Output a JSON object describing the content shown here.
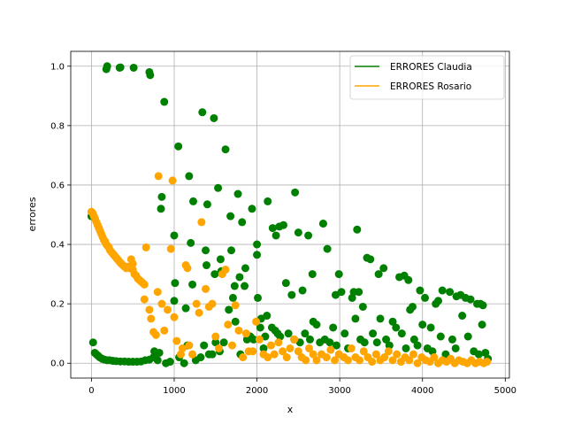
{
  "chart_data": {
    "type": "scatter",
    "title": "",
    "xlabel": "x",
    "ylabel": "errores",
    "xlim": [
      -250,
      5050
    ],
    "ylim": [
      -0.05,
      1.05
    ],
    "xticks": [
      0,
      1000,
      2000,
      3000,
      4000,
      5000
    ],
    "yticks": [
      0.0,
      0.2,
      0.4,
      0.6,
      0.8,
      1.0
    ],
    "xtick_labels": [
      "0",
      "1000",
      "2000",
      "3000",
      "4000",
      "5000"
    ],
    "ytick_labels": [
      "0.0",
      "0.2",
      "0.4",
      "0.6",
      "0.8",
      "1.0"
    ],
    "grid": true,
    "legend_position": "top-right",
    "series": [
      {
        "name": "ERRORES Claudia",
        "color": "#008000",
        "points": [
          [
            0,
            0.495
          ],
          [
            20,
            0.07
          ],
          [
            40,
            0.035
          ],
          [
            60,
            0.03
          ],
          [
            80,
            0.025
          ],
          [
            100,
            0.02
          ],
          [
            130,
            0.015
          ],
          [
            160,
            0.012
          ],
          [
            190,
            0.01
          ],
          [
            220,
            0.01
          ],
          [
            260,
            0.008
          ],
          [
            300,
            0.007
          ],
          [
            350,
            0.006
          ],
          [
            400,
            0.006
          ],
          [
            450,
            0.005
          ],
          [
            500,
            0.005
          ],
          [
            550,
            0.005
          ],
          [
            600,
            0.006
          ],
          [
            650,
            0.01
          ],
          [
            700,
            0.012
          ],
          [
            750,
            0.02
          ],
          [
            180,
            0.99
          ],
          [
            190,
            1.0
          ],
          [
            340,
            0.995
          ],
          [
            350,
            0.996
          ],
          [
            510,
            0.995
          ],
          [
            700,
            0.98
          ],
          [
            710,
            0.97
          ],
          [
            880,
            0.88
          ],
          [
            1050,
            0.73
          ],
          [
            1180,
            0.63
          ],
          [
            1340,
            0.845
          ],
          [
            1480,
            0.825
          ],
          [
            1620,
            0.72
          ],
          [
            1530,
            0.59
          ],
          [
            1770,
            0.57
          ],
          [
            1940,
            0.52
          ],
          [
            2130,
            0.545
          ],
          [
            2460,
            0.575
          ],
          [
            840,
            0.52
          ],
          [
            850,
            0.56
          ],
          [
            1000,
            0.43
          ],
          [
            1200,
            0.405
          ],
          [
            1230,
            0.545
          ],
          [
            1400,
            0.535
          ],
          [
            1680,
            0.495
          ],
          [
            1820,
            0.475
          ],
          [
            2000,
            0.4
          ],
          [
            2000,
            0.365
          ],
          [
            2190,
            0.455
          ],
          [
            2230,
            0.43
          ],
          [
            2270,
            0.46
          ],
          [
            2320,
            0.465
          ],
          [
            2500,
            0.44
          ],
          [
            2620,
            0.43
          ],
          [
            2800,
            0.47
          ],
          [
            3210,
            0.45
          ],
          [
            1010,
            0.27
          ],
          [
            1140,
            0.185
          ],
          [
            1220,
            0.265
          ],
          [
            1380,
            0.38
          ],
          [
            1390,
            0.33
          ],
          [
            1490,
            0.3
          ],
          [
            1560,
            0.35
          ],
          [
            1570,
            0.31
          ],
          [
            1690,
            0.38
          ],
          [
            1710,
            0.22
          ],
          [
            1730,
            0.26
          ],
          [
            1790,
            0.29
          ],
          [
            1850,
            0.26
          ],
          [
            1860,
            0.32
          ],
          [
            2010,
            0.22
          ],
          [
            2050,
            0.15
          ],
          [
            2120,
            0.16
          ],
          [
            2350,
            0.27
          ],
          [
            2420,
            0.23
          ],
          [
            2550,
            0.245
          ],
          [
            2670,
            0.3
          ],
          [
            2850,
            0.385
          ],
          [
            2950,
            0.23
          ],
          [
            2990,
            0.3
          ],
          [
            3020,
            0.24
          ],
          [
            3150,
            0.22
          ],
          [
            3170,
            0.24
          ],
          [
            3230,
            0.24
          ],
          [
            3280,
            0.19
          ],
          [
            3330,
            0.355
          ],
          [
            3370,
            0.35
          ],
          [
            3470,
            0.3
          ],
          [
            3530,
            0.32
          ],
          [
            3720,
            0.29
          ],
          [
            3780,
            0.295
          ],
          [
            3830,
            0.28
          ],
          [
            3850,
            0.18
          ],
          [
            3880,
            0.19
          ],
          [
            3970,
            0.245
          ],
          [
            4030,
            0.22
          ],
          [
            4160,
            0.2
          ],
          [
            4190,
            0.21
          ],
          [
            4240,
            0.245
          ],
          [
            4330,
            0.24
          ],
          [
            4410,
            0.225
          ],
          [
            4460,
            0.23
          ],
          [
            4520,
            0.22
          ],
          [
            4580,
            0.215
          ],
          [
            4660,
            0.2
          ],
          [
            4700,
            0.2
          ],
          [
            4730,
            0.195
          ],
          [
            760,
            0.04
          ],
          [
            800,
            0.01
          ],
          [
            820,
            0.035
          ],
          [
            900,
            0.0
          ],
          [
            950,
            0.005
          ],
          [
            1000,
            0.21
          ],
          [
            1060,
            0.02
          ],
          [
            1120,
            0.0
          ],
          [
            1160,
            0.06
          ],
          [
            1260,
            0.01
          ],
          [
            1320,
            0.02
          ],
          [
            1360,
            0.06
          ],
          [
            1420,
            0.03
          ],
          [
            1460,
            0.03
          ],
          [
            1500,
            0.07
          ],
          [
            1550,
            0.04
          ],
          [
            1600,
            0.07
          ],
          [
            1660,
            0.18
          ],
          [
            1740,
            0.14
          ],
          [
            1800,
            0.03
          ],
          [
            1880,
            0.08
          ],
          [
            1920,
            0.09
          ],
          [
            1960,
            0.08
          ],
          [
            2040,
            0.12
          ],
          [
            2080,
            0.05
          ],
          [
            2100,
            0.09
          ],
          [
            2180,
            0.12
          ],
          [
            2220,
            0.11
          ],
          [
            2250,
            0.1
          ],
          [
            2280,
            0.09
          ],
          [
            2380,
            0.1
          ],
          [
            2450,
            0.08
          ],
          [
            2520,
            0.07
          ],
          [
            2580,
            0.1
          ],
          [
            2640,
            0.08
          ],
          [
            2680,
            0.14
          ],
          [
            2720,
            0.13
          ],
          [
            2760,
            0.07
          ],
          [
            2820,
            0.08
          ],
          [
            2880,
            0.07
          ],
          [
            2920,
            0.12
          ],
          [
            2960,
            0.06
          ],
          [
            3060,
            0.1
          ],
          [
            3100,
            0.05
          ],
          [
            3190,
            0.15
          ],
          [
            3250,
            0.08
          ],
          [
            3300,
            0.07
          ],
          [
            3400,
            0.1
          ],
          [
            3450,
            0.07
          ],
          [
            3490,
            0.15
          ],
          [
            3560,
            0.08
          ],
          [
            3600,
            0.06
          ],
          [
            3640,
            0.14
          ],
          [
            3680,
            0.12
          ],
          [
            3750,
            0.1
          ],
          [
            3800,
            0.05
          ],
          [
            3900,
            0.08
          ],
          [
            3940,
            0.06
          ],
          [
            4000,
            0.13
          ],
          [
            4060,
            0.05
          ],
          [
            4100,
            0.12
          ],
          [
            4120,
            0.04
          ],
          [
            4220,
            0.09
          ],
          [
            4280,
            0.03
          ],
          [
            4360,
            0.08
          ],
          [
            4400,
            0.05
          ],
          [
            4480,
            0.16
          ],
          [
            4550,
            0.09
          ],
          [
            4620,
            0.04
          ],
          [
            4680,
            0.03
          ],
          [
            4720,
            0.13
          ],
          [
            4760,
            0.035
          ],
          [
            4790,
            0.015
          ]
        ]
      },
      {
        "name": "ERRORES Rosario",
        "color": "#ffa500",
        "points": [
          [
            0,
            0.51
          ],
          [
            15,
            0.505
          ],
          [
            30,
            0.495
          ],
          [
            45,
            0.485
          ],
          [
            60,
            0.475
          ],
          [
            75,
            0.465
          ],
          [
            90,
            0.455
          ],
          [
            105,
            0.445
          ],
          [
            120,
            0.435
          ],
          [
            135,
            0.425
          ],
          [
            150,
            0.415
          ],
          [
            165,
            0.41
          ],
          [
            180,
            0.4
          ],
          [
            195,
            0.395
          ],
          [
            210,
            0.39
          ],
          [
            225,
            0.38
          ],
          [
            240,
            0.375
          ],
          [
            255,
            0.37
          ],
          [
            270,
            0.365
          ],
          [
            285,
            0.36
          ],
          [
            300,
            0.355
          ],
          [
            315,
            0.35
          ],
          [
            330,
            0.345
          ],
          [
            345,
            0.34
          ],
          [
            360,
            0.335
          ],
          [
            380,
            0.33
          ],
          [
            400,
            0.325
          ],
          [
            420,
            0.32
          ],
          [
            440,
            0.325
          ],
          [
            460,
            0.32
          ],
          [
            480,
            0.32
          ],
          [
            500,
            0.315
          ],
          [
            520,
            0.3
          ],
          [
            540,
            0.295
          ],
          [
            560,
            0.285
          ],
          [
            580,
            0.28
          ],
          [
            600,
            0.275
          ],
          [
            620,
            0.27
          ],
          [
            640,
            0.265
          ],
          [
            480,
            0.35
          ],
          [
            500,
            0.335
          ],
          [
            640,
            0.215
          ],
          [
            660,
            0.39
          ],
          [
            700,
            0.18
          ],
          [
            720,
            0.15
          ],
          [
            750,
            0.105
          ],
          [
            780,
            0.095
          ],
          [
            800,
            0.24
          ],
          [
            810,
            0.63
          ],
          [
            850,
            0.2
          ],
          [
            880,
            0.11
          ],
          [
            920,
            0.18
          ],
          [
            960,
            0.385
          ],
          [
            980,
            0.615
          ],
          [
            1000,
            0.155
          ],
          [
            1030,
            0.075
          ],
          [
            1080,
            0.03
          ],
          [
            1100,
            0.05
          ],
          [
            1140,
            0.33
          ],
          [
            1160,
            0.32
          ],
          [
            1180,
            0.06
          ],
          [
            1220,
            0.03
          ],
          [
            1270,
            0.2
          ],
          [
            1300,
            0.17
          ],
          [
            1330,
            0.475
          ],
          [
            1380,
            0.25
          ],
          [
            1420,
            0.19
          ],
          [
            1460,
            0.2
          ],
          [
            1500,
            0.09
          ],
          [
            1540,
            0.05
          ],
          [
            1580,
            0.3
          ],
          [
            1620,
            0.315
          ],
          [
            1650,
            0.13
          ],
          [
            1700,
            0.06
          ],
          [
            1740,
            0.195
          ],
          [
            1780,
            0.11
          ],
          [
            1830,
            0.02
          ],
          [
            1870,
            0.1
          ],
          [
            1900,
            0.04
          ],
          [
            1950,
            0.04
          ],
          [
            1990,
            0.14
          ],
          [
            2030,
            0.08
          ],
          [
            2080,
            0.03
          ],
          [
            2130,
            0.02
          ],
          [
            2170,
            0.06
          ],
          [
            2210,
            0.03
          ],
          [
            2260,
            0.07
          ],
          [
            2310,
            0.04
          ],
          [
            2360,
            0.02
          ],
          [
            2400,
            0.05
          ],
          [
            2450,
            0.08
          ],
          [
            2500,
            0.04
          ],
          [
            2540,
            0.02
          ],
          [
            2590,
            0.01
          ],
          [
            2630,
            0.05
          ],
          [
            2680,
            0.03
          ],
          [
            2720,
            0.01
          ],
          [
            2780,
            0.03
          ],
          [
            2840,
            0.02
          ],
          [
            2890,
            0.045
          ],
          [
            2940,
            0.01
          ],
          [
            2990,
            0.03
          ],
          [
            3050,
            0.02
          ],
          [
            3100,
            0.01
          ],
          [
            3140,
            0.05
          ],
          [
            3190,
            0.02
          ],
          [
            3240,
            0.01
          ],
          [
            3290,
            0.04
          ],
          [
            3340,
            0.02
          ],
          [
            3390,
            0.005
          ],
          [
            3440,
            0.03
          ],
          [
            3490,
            0.01
          ],
          [
            3540,
            0.02
          ],
          [
            3590,
            0.04
          ],
          [
            3640,
            0.01
          ],
          [
            3690,
            0.03
          ],
          [
            3740,
            0.005
          ],
          [
            3790,
            0.02
          ],
          [
            3840,
            0.01
          ],
          [
            3890,
            0.03
          ],
          [
            3940,
            0.0
          ],
          [
            3990,
            0.02
          ],
          [
            4040,
            0.01
          ],
          [
            4090,
            0.005
          ],
          [
            4140,
            0.02
          ],
          [
            4190,
            0.0
          ],
          [
            4240,
            0.01
          ],
          [
            4290,
            0.005
          ],
          [
            4340,
            0.015
          ],
          [
            4390,
            0.0
          ],
          [
            4440,
            0.01
          ],
          [
            4490,
            0.005
          ],
          [
            4540,
            0.0
          ],
          [
            4590,
            0.01
          ],
          [
            4640,
            0.0
          ],
          [
            4690,
            0.005
          ],
          [
            4740,
            0.0
          ],
          [
            4780,
            0.005
          ]
        ]
      }
    ]
  }
}
